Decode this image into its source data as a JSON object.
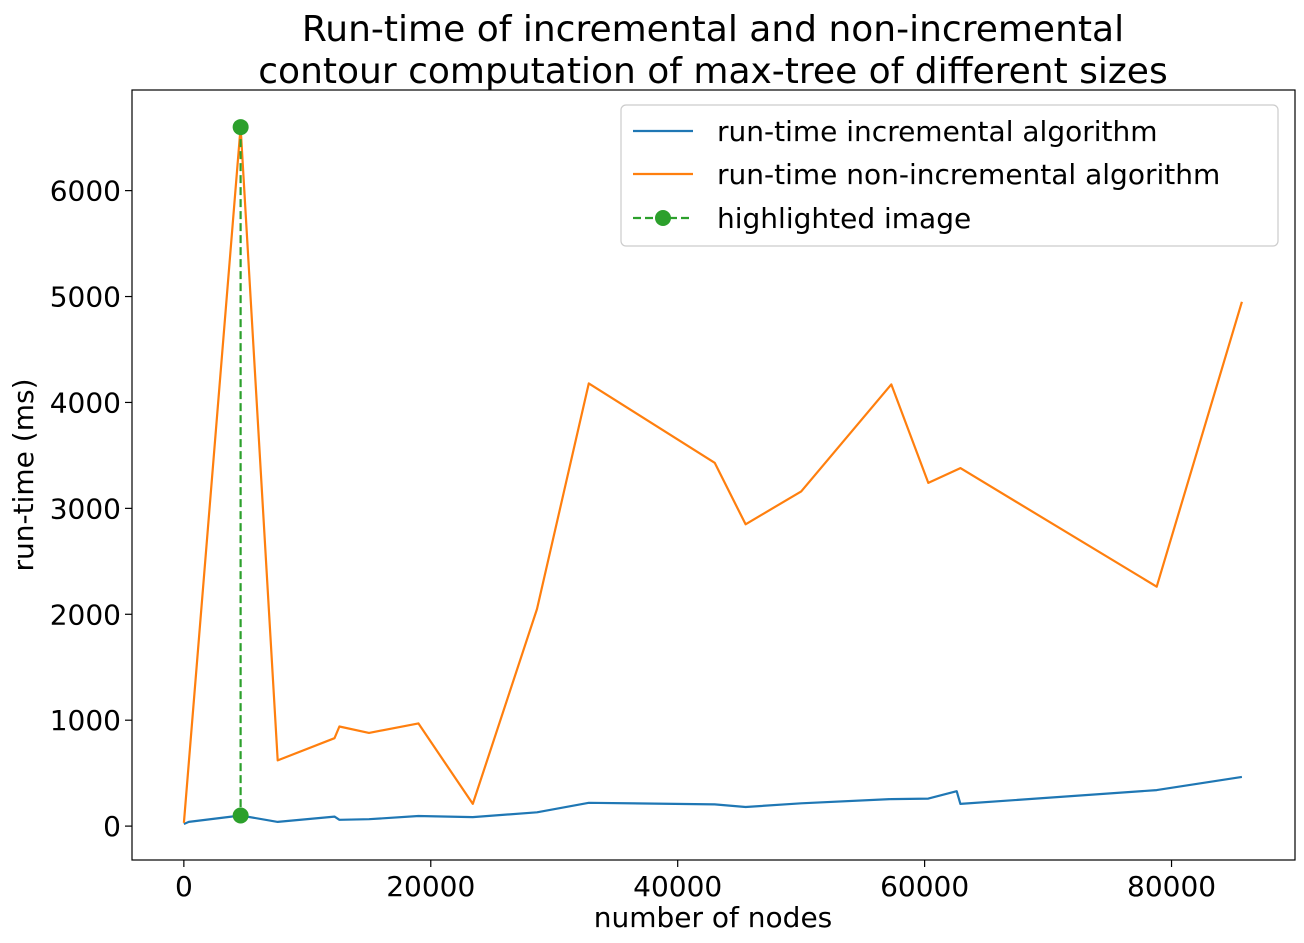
{
  "chart_data": {
    "type": "line",
    "title_lines": [
      "Run-time of incremental and non-incremental",
      "contour computation of max-tree of different sizes"
    ],
    "xlabel": "number of nodes",
    "ylabel": "run-time (ms)",
    "xlim": [
      -4200,
      90000
    ],
    "ylim": [
      -320,
      6950
    ],
    "xticks": [
      0,
      20000,
      40000,
      60000,
      80000
    ],
    "xtick_labels": [
      "0",
      "20000",
      "40000",
      "60000",
      "80000"
    ],
    "yticks": [
      0,
      1000,
      2000,
      3000,
      4000,
      5000,
      6000
    ],
    "ytick_labels": [
      "0",
      "1000",
      "2000",
      "3000",
      "4000",
      "5000",
      "6000"
    ],
    "grid": false,
    "legend_position": "top-right",
    "series": [
      {
        "name": "run-time incremental algorithm",
        "color": "#1f77b4",
        "style": "solid",
        "x": [
          0,
          400,
          4600,
          7600,
          12200,
          12600,
          15000,
          19000,
          23400,
          28600,
          32800,
          43000,
          45500,
          50000,
          57300,
          60300,
          62600,
          62900,
          78800,
          85700
        ],
        "y": [
          20,
          40,
          100,
          40,
          90,
          60,
          65,
          95,
          85,
          130,
          220,
          205,
          180,
          215,
          255,
          260,
          330,
          210,
          340,
          465
        ]
      },
      {
        "name": "run-time non-incremental algorithm",
        "color": "#ff7f0e",
        "style": "solid",
        "x": [
          0,
          4600,
          7600,
          12200,
          12600,
          15000,
          19000,
          23400,
          28600,
          32800,
          43000,
          45500,
          50000,
          57300,
          60300,
          62900,
          78800,
          85700
        ],
        "y": [
          30,
          6600,
          620,
          830,
          940,
          880,
          970,
          210,
          2050,
          4180,
          3430,
          2850,
          3160,
          4170,
          3240,
          3380,
          2260,
          4950
        ]
      },
      {
        "name": "highlighted image",
        "color": "#2ca02c",
        "style": "dashed-markers",
        "x": [
          4600,
          4600
        ],
        "y": [
          6600,
          100
        ]
      }
    ]
  }
}
